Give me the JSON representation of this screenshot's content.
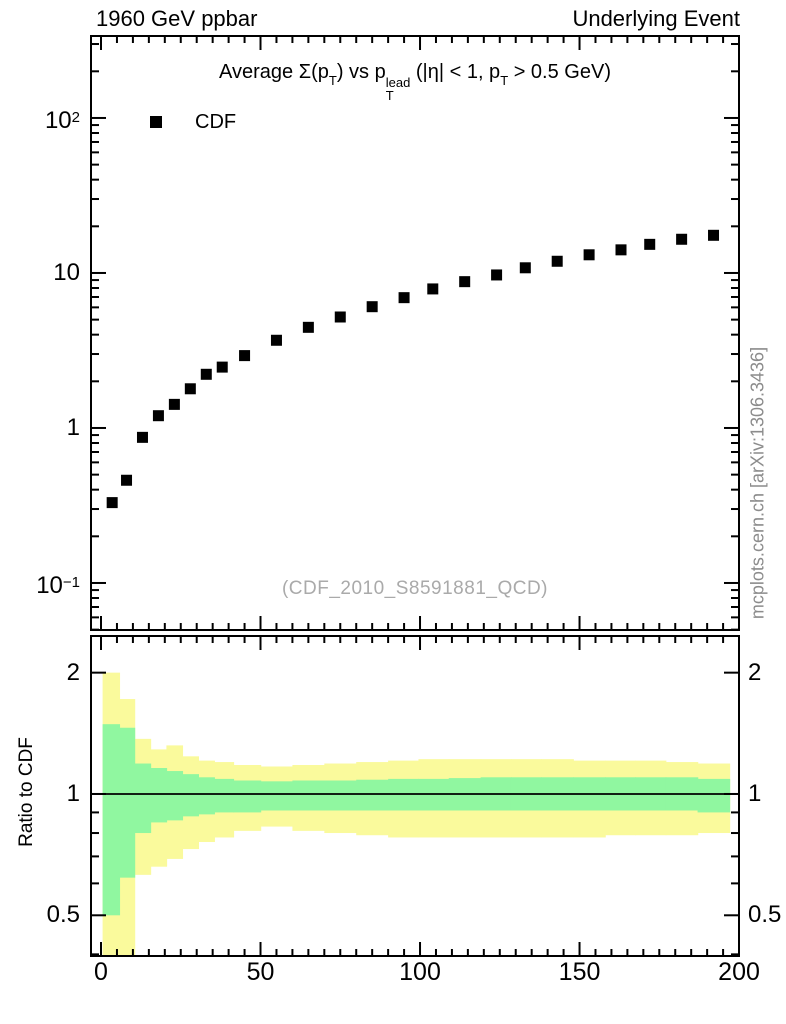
{
  "header": {
    "left_label": "1960 GeV ppbar",
    "right_label": "Underlying Event"
  },
  "title": {
    "plain": "Average Σ(p_T) vs p_T^lead (|η| < 1, p_T > 0.5 GeV)",
    "segments": [
      {
        "text": "Average "
      },
      {
        "text": "Σ(p"
      },
      {
        "sub": "T"
      },
      {
        "text": ") vs p"
      },
      {
        "stack": {
          "top": "lead",
          "bottom": "T"
        }
      },
      {
        "text": " (|η| < 1, p"
      },
      {
        "sub": "T"
      },
      {
        "text": " > 0.5 GeV)"
      }
    ]
  },
  "legend": {
    "label": "CDF",
    "marker": "filled-square",
    "marker_color": "#000000"
  },
  "watermark": {
    "text": "(CDF_2010_S8591881_QCD)",
    "color": "#aaaaaa"
  },
  "side_note": {
    "text": "mcplots.cern.ch [arXiv:1306.3436]",
    "color": "#8c8c8c"
  },
  "ratio": {
    "ylabel": "Ratio to CDF"
  },
  "colors": {
    "frame": "#000000",
    "marker": "#000000",
    "yellow_band": "#fafa9c",
    "green_band": "#90f7a0",
    "reference_line": "#000000"
  },
  "chart_data": [
    {
      "type": "scatter",
      "title": "Average Σ(p_T) vs p_T^lead (|η| < 1, p_T > 0.5 GeV)",
      "xlabel": "",
      "ylabel": "",
      "x_axis": {
        "min": -3.45,
        "max": 200.3,
        "labeled_ticks": [
          0,
          50,
          100,
          150,
          200
        ],
        "minor_step": 5,
        "major_every": 50
      },
      "y_axis": {
        "scale": "log",
        "min": 0.049,
        "max": 343,
        "long_ticks": [
          0.1,
          1,
          10,
          100
        ],
        "labeled_ticks": [
          {
            "value": 100,
            "base": "10",
            "exp": "2"
          },
          {
            "value": 10,
            "base": "10",
            "exp": ""
          },
          {
            "value": 1,
            "base": "1",
            "exp": ""
          },
          {
            "value": 0.1,
            "base": "10",
            "exp": "−1"
          }
        ]
      },
      "series": [
        {
          "name": "CDF",
          "marker": "filled-square",
          "color": "#000000",
          "x": [
            3.5,
            8,
            13,
            18,
            23,
            28,
            33,
            38,
            45,
            55,
            65,
            75,
            85,
            95,
            104,
            114,
            124,
            133,
            143,
            153,
            163,
            172,
            182,
            192
          ],
          "y": [
            0.33,
            0.46,
            0.87,
            1.2,
            1.42,
            1.79,
            2.22,
            2.47,
            2.93,
            3.68,
            4.46,
            5.2,
            6.06,
            6.93,
            7.89,
            8.79,
            9.71,
            10.8,
            11.9,
            13.1,
            14.1,
            15.3,
            16.5,
            17.5
          ]
        }
      ]
    },
    {
      "type": "area",
      "title": "",
      "ylabel": "Ratio to CDF",
      "x_axis": {
        "min": -3.45,
        "max": 200.3,
        "labeled_ticks": [
          0,
          50,
          100,
          150,
          200
        ],
        "minor_step": 5,
        "major_every": 50
      },
      "y_axis": {
        "scale": "log",
        "min": 0.394,
        "max": 2.48,
        "long_ticks": [
          0.5,
          1,
          2
        ],
        "labeled_ticks": [
          {
            "value": 2,
            "base": "2",
            "exp": ""
          },
          {
            "value": 1,
            "base": "1",
            "exp": ""
          },
          {
            "value": 0.5,
            "base": "0.5",
            "exp": ""
          }
        ]
      },
      "reference_line": 1,
      "bin_edges": [
        0.5,
        5.75,
        10.5,
        15.5,
        20.5,
        25.5,
        30.5,
        35.5,
        41.5,
        50,
        60,
        70,
        80,
        90,
        99.5,
        109,
        119,
        128.5,
        138,
        148,
        158,
        167.5,
        177,
        187,
        197
      ],
      "bands": [
        {
          "name": "data-total-uncertainty",
          "color": "#fafa9c",
          "hi": [
            2.0,
            1.72,
            1.37,
            1.29,
            1.32,
            1.24,
            1.21,
            1.2,
            1.18,
            1.17,
            1.18,
            1.19,
            1.2,
            1.21,
            1.22,
            1.22,
            1.22,
            1.22,
            1.22,
            1.21,
            1.21,
            1.21,
            1.2,
            1.19
          ],
          "lo": [
            0.3,
            0.3,
            0.63,
            0.66,
            0.69,
            0.73,
            0.76,
            0.78,
            0.81,
            0.83,
            0.81,
            0.8,
            0.79,
            0.78,
            0.78,
            0.78,
            0.78,
            0.78,
            0.78,
            0.78,
            0.79,
            0.79,
            0.79,
            0.8
          ],
          "note": "first two bins extend below visible axis"
        },
        {
          "name": "data-stat-uncertainty",
          "color": "#90f7a0",
          "hi": [
            1.49,
            1.46,
            1.19,
            1.16,
            1.14,
            1.12,
            1.1,
            1.09,
            1.08,
            1.075,
            1.08,
            1.08,
            1.085,
            1.09,
            1.09,
            1.095,
            1.1,
            1.1,
            1.1,
            1.1,
            1.1,
            1.1,
            1.1,
            1.09
          ],
          "lo": [
            0.5,
            0.62,
            0.8,
            0.85,
            0.86,
            0.88,
            0.89,
            0.9,
            0.9,
            0.91,
            0.91,
            0.91,
            0.91,
            0.91,
            0.91,
            0.91,
            0.91,
            0.91,
            0.91,
            0.91,
            0.91,
            0.91,
            0.91,
            0.9
          ]
        }
      ]
    }
  ]
}
